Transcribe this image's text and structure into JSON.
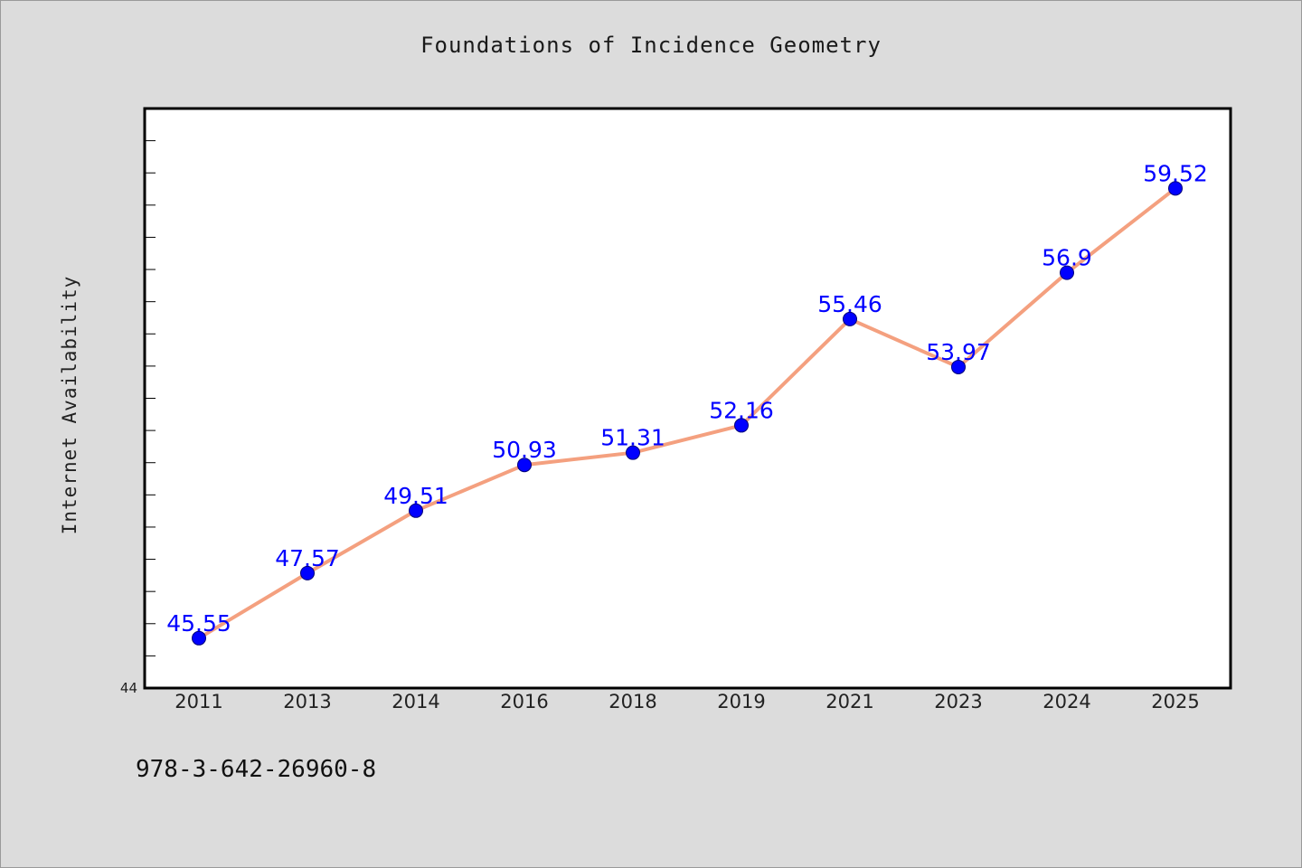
{
  "title": "Foundations of Incidence Geometry",
  "isbn": "978-3-642-26960-8",
  "colors": {
    "background": "#dcdcdc",
    "plot_background": "#ffffff",
    "line": "#f4a07f",
    "marker": "#0000ff",
    "data_label": "#0000ff"
  },
  "chart_data": {
    "type": "line",
    "title": "Foundations of Incidence Geometry",
    "xlabel": "",
    "ylabel": "Internet Availability",
    "categories": [
      "2011",
      "2013",
      "2014",
      "2016",
      "2018",
      "2019",
      "2021",
      "2023",
      "2024",
      "2025"
    ],
    "series": [
      {
        "values": [
          45.55,
          47.57,
          49.51,
          50.93,
          51.31,
          52.16,
          55.46,
          53.97,
          56.9,
          59.52
        ],
        "labels": [
          "45.55",
          "47.57",
          "49.51",
          "50.93",
          "51.31",
          "52.16",
          "55.46",
          "53.97",
          "56.9",
          "59.52"
        ]
      }
    ],
    "ylim": [
      44,
      62
    ],
    "ytick_labels": [
      "44"
    ],
    "minor_tick_step": 1,
    "grid": false,
    "legend": "none"
  }
}
